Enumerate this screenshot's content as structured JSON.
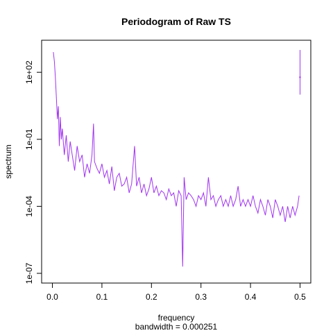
{
  "chart_data": {
    "type": "line",
    "title": "Periodogram of Raw TS",
    "xlabel": "frequency",
    "xlabel_sub": "bandwidth = 0.000251",
    "ylabel": "spectrum",
    "xlim": [
      0.0,
      0.5
    ],
    "ylim": [
      1e-07,
      1000
    ],
    "y_scale": "log",
    "x_ticks": [
      0.0,
      0.1,
      0.2,
      0.3,
      0.4,
      0.5
    ],
    "x_tick_labels": [
      "0.0",
      "0.1",
      "0.2",
      "0.3",
      "0.4",
      "0.5"
    ],
    "y_ticks": [
      1e-07,
      0.0001,
      0.1,
      100
    ],
    "y_tick_labels": [
      "1e-07",
      "1e-04",
      "1e-01",
      "1e+02"
    ],
    "grid": false,
    "line_color": "#a033f0",
    "series": [
      {
        "values_description_free": true,
        "x": [
          0.002,
          0.004,
          0.006,
          0.008,
          0.01,
          0.012,
          0.014,
          0.016,
          0.018,
          0.02,
          0.024,
          0.028,
          0.032,
          0.036,
          0.04,
          0.045,
          0.05,
          0.055,
          0.06,
          0.065,
          0.07,
          0.075,
          0.08,
          0.083,
          0.085,
          0.09,
          0.095,
          0.1,
          0.105,
          0.11,
          0.115,
          0.12,
          0.125,
          0.13,
          0.135,
          0.14,
          0.145,
          0.15,
          0.155,
          0.16,
          0.166,
          0.17,
          0.175,
          0.18,
          0.185,
          0.19,
          0.195,
          0.2,
          0.205,
          0.21,
          0.215,
          0.22,
          0.225,
          0.23,
          0.235,
          0.24,
          0.245,
          0.25,
          0.255,
          0.26,
          0.263,
          0.266,
          0.27,
          0.275,
          0.28,
          0.285,
          0.29,
          0.295,
          0.3,
          0.305,
          0.31,
          0.315,
          0.32,
          0.325,
          0.33,
          0.335,
          0.34,
          0.345,
          0.35,
          0.355,
          0.36,
          0.365,
          0.37,
          0.375,
          0.38,
          0.385,
          0.39,
          0.395,
          0.4,
          0.405,
          0.41,
          0.415,
          0.42,
          0.425,
          0.43,
          0.435,
          0.44,
          0.445,
          0.45,
          0.455,
          0.46,
          0.465,
          0.47,
          0.475,
          0.48,
          0.485,
          0.49,
          0.495,
          0.498
        ],
        "y": [
          800,
          300,
          60,
          8,
          0.8,
          3,
          0.05,
          1,
          0.1,
          0.3,
          0.02,
          0.15,
          0.01,
          0.08,
          0.02,
          0.004,
          0.05,
          0.01,
          0.02,
          0.002,
          0.008,
          0.003,
          0.02,
          0.5,
          0.01,
          0.005,
          0.003,
          0.008,
          0.002,
          0.004,
          0.001,
          0.006,
          0.0005,
          0.002,
          0.003,
          0.0008,
          0.001,
          0.002,
          0.0004,
          0.001,
          0.05,
          0.0008,
          0.002,
          0.0004,
          0.001,
          0.0003,
          0.0006,
          0.002,
          0.0004,
          0.0008,
          0.0003,
          0.0005,
          0.0004,
          0.0002,
          0.0006,
          0.0003,
          0.0004,
          0.0001,
          0.0005,
          0.0003,
          2e-07,
          0.002,
          0.0002,
          0.0004,
          0.0003,
          0.0002,
          0.0001,
          0.0003,
          0.0002,
          0.0004,
          0.0001,
          0.002,
          0.0002,
          0.0003,
          0.0001,
          0.0002,
          0.0003,
          0.0001,
          0.0002,
          0.0001,
          0.0003,
          0.0001,
          0.0002,
          0.0008,
          0.0001,
          0.0002,
          0.0001,
          0.0002,
          0.0001,
          0.0003,
          0.0001,
          5e-05,
          0.0002,
          0.0001,
          4e-05,
          0.0002,
          0.0001,
          3e-05,
          0.0002,
          0.0001,
          4e-05,
          0.0001,
          2e-05,
          0.0001,
          3e-05,
          0.0001,
          4e-05,
          0.0001,
          0.0003
        ]
      }
    ],
    "spike": {
      "x": 0.5,
      "y_low": 10,
      "y_high": 1000,
      "y_mid": 60
    }
  }
}
